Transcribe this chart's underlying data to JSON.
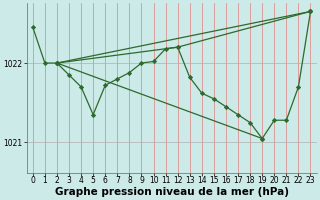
{
  "title": "Graphe pression niveau de la mer (hPa)",
  "xlabel_ticks": [
    "0",
    "1",
    "2",
    "3",
    "4",
    "5",
    "6",
    "7",
    "8",
    "9",
    "10",
    "11",
    "12",
    "13",
    "14",
    "15",
    "16",
    "17",
    "18",
    "19",
    "20",
    "21",
    "22",
    "23"
  ],
  "yticks": [
    1021,
    1022
  ],
  "ylim": [
    1020.62,
    1022.75
  ],
  "xlim": [
    -0.5,
    23.5
  ],
  "bg_color": "#cceae7",
  "line_color": "#2d6a2d",
  "vgrid_color": "#e08080",
  "hgrid_color": "#b0b0b0",
  "series": [
    {
      "x": [
        0,
        1,
        2,
        3,
        4,
        5,
        6,
        7,
        8,
        9,
        10,
        11,
        12,
        13,
        14,
        15,
        16,
        17,
        18,
        19,
        20,
        21,
        22,
        23
      ],
      "y": [
        1022.45,
        1022.0,
        1022.0,
        1021.85,
        1021.7,
        1021.35,
        1021.72,
        1021.8,
        1021.88,
        1022.0,
        1022.02,
        1022.18,
        1022.2,
        1021.82,
        1021.62,
        1021.55,
        1021.45,
        1021.35,
        1021.25,
        1021.05,
        1021.28,
        1021.28,
        1021.7,
        1022.65
      ]
    },
    {
      "x": [
        2,
        23
      ],
      "y": [
        1022.0,
        1022.65
      ]
    },
    {
      "x": [
        2,
        19
      ],
      "y": [
        1022.0,
        1021.05
      ]
    },
    {
      "x": [
        2,
        12,
        23
      ],
      "y": [
        1022.0,
        1022.2,
        1022.65
      ]
    }
  ],
  "marker": "D",
  "marker_size": 2.2,
  "linewidth": 0.9,
  "title_fontsize": 7.5,
  "tick_fontsize": 5.5
}
